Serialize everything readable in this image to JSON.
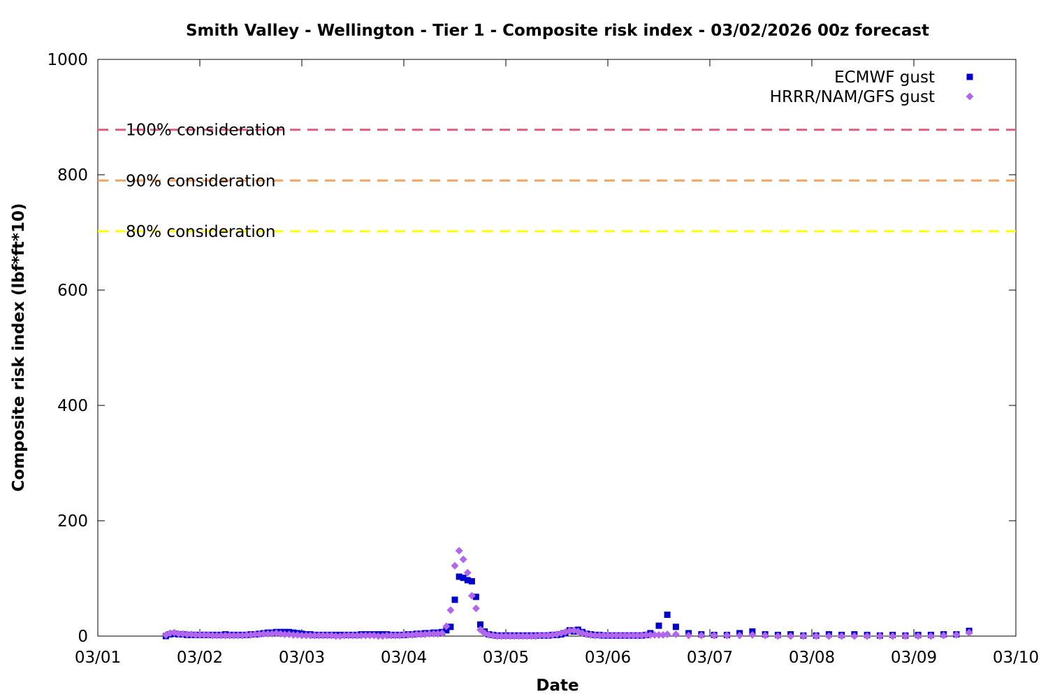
{
  "chart_data": {
    "type": "scatter",
    "title": "Smith Valley - Wellington - Tier 1 - Composite risk index - 03/02/2026 00z forecast",
    "xlabel": "Date",
    "ylabel": "Composite risk index (lbf*ft*10)",
    "xlim": [
      "03/01",
      "03/10"
    ],
    "ylim": [
      0,
      1000
    ],
    "x_ticks": [
      "03/01",
      "03/02",
      "03/03",
      "03/04",
      "03/05",
      "03/06",
      "03/07",
      "03/08",
      "03/09",
      "03/10"
    ],
    "y_ticks": [
      0,
      200,
      400,
      600,
      800,
      1000
    ],
    "x_unit_note": "x values are in days on the date axis (0 = 03/01, 1 = 03/02, ...)",
    "grid": false,
    "legend_position": "top-right",
    "reference_lines": [
      {
        "label": "100% consideration",
        "value": 878,
        "color": "#e0607e"
      },
      {
        "label": "90% consideration",
        "value": 790,
        "color": "#f4a460"
      },
      {
        "label": "80% consideration",
        "value": 702,
        "color": "#ffff00"
      }
    ],
    "series": [
      {
        "name": "ECMWF gust",
        "marker": "square",
        "color": "#0000cc",
        "points": [
          [
            0.667,
            0
          ],
          [
            0.708,
            3
          ],
          [
            0.75,
            4
          ],
          [
            0.792,
            3
          ],
          [
            0.833,
            3
          ],
          [
            0.875,
            2
          ],
          [
            0.917,
            2
          ],
          [
            0.958,
            2
          ],
          [
            1.0,
            2
          ],
          [
            1.042,
            2
          ],
          [
            1.083,
            2
          ],
          [
            1.125,
            2
          ],
          [
            1.167,
            2
          ],
          [
            1.208,
            2
          ],
          [
            1.25,
            3
          ],
          [
            1.292,
            2
          ],
          [
            1.333,
            2
          ],
          [
            1.375,
            2
          ],
          [
            1.417,
            2
          ],
          [
            1.458,
            2
          ],
          [
            1.5,
            3
          ],
          [
            1.542,
            3
          ],
          [
            1.583,
            4
          ],
          [
            1.625,
            5
          ],
          [
            1.667,
            6
          ],
          [
            1.708,
            6
          ],
          [
            1.75,
            7
          ],
          [
            1.792,
            7
          ],
          [
            1.833,
            7
          ],
          [
            1.875,
            7
          ],
          [
            1.917,
            6
          ],
          [
            1.958,
            5
          ],
          [
            2.0,
            4
          ],
          [
            2.042,
            3
          ],
          [
            2.083,
            3
          ],
          [
            2.125,
            2
          ],
          [
            2.167,
            2
          ],
          [
            2.208,
            2
          ],
          [
            2.25,
            2
          ],
          [
            2.292,
            2
          ],
          [
            2.333,
            2
          ],
          [
            2.375,
            2
          ],
          [
            2.417,
            2
          ],
          [
            2.458,
            2
          ],
          [
            2.5,
            2
          ],
          [
            2.542,
            2
          ],
          [
            2.583,
            3
          ],
          [
            2.625,
            3
          ],
          [
            2.667,
            3
          ],
          [
            2.708,
            3
          ],
          [
            2.75,
            3
          ],
          [
            2.792,
            3
          ],
          [
            2.833,
            3
          ],
          [
            2.875,
            2
          ],
          [
            2.917,
            2
          ],
          [
            2.958,
            2
          ],
          [
            3.0,
            2
          ],
          [
            3.042,
            3
          ],
          [
            3.083,
            3
          ],
          [
            3.125,
            4
          ],
          [
            3.167,
            4
          ],
          [
            3.208,
            5
          ],
          [
            3.25,
            5
          ],
          [
            3.292,
            6
          ],
          [
            3.333,
            6
          ],
          [
            3.375,
            7
          ],
          [
            3.417,
            10
          ],
          [
            3.458,
            16
          ],
          [
            3.5,
            63
          ],
          [
            3.542,
            103
          ],
          [
            3.583,
            101
          ],
          [
            3.625,
            97
          ],
          [
            3.667,
            95
          ],
          [
            3.708,
            68
          ],
          [
            3.75,
            20
          ],
          [
            3.792,
            8
          ],
          [
            3.833,
            3
          ],
          [
            3.875,
            2
          ],
          [
            3.917,
            1
          ],
          [
            3.958,
            1
          ],
          [
            4.0,
            1
          ],
          [
            4.042,
            1
          ],
          [
            4.083,
            1
          ],
          [
            4.125,
            1
          ],
          [
            4.167,
            1
          ],
          [
            4.208,
            1
          ],
          [
            4.25,
            1
          ],
          [
            4.292,
            1
          ],
          [
            4.333,
            1
          ],
          [
            4.375,
            1
          ],
          [
            4.417,
            1
          ],
          [
            4.458,
            2
          ],
          [
            4.5,
            2
          ],
          [
            4.542,
            3
          ],
          [
            4.583,
            5
          ],
          [
            4.625,
            10
          ],
          [
            4.667,
            8
          ],
          [
            4.708,
            11
          ],
          [
            4.75,
            7
          ],
          [
            4.792,
            4
          ],
          [
            4.833,
            3
          ],
          [
            4.875,
            2
          ],
          [
            4.917,
            2
          ],
          [
            4.958,
            1
          ],
          [
            5.0,
            1
          ],
          [
            5.042,
            1
          ],
          [
            5.083,
            1
          ],
          [
            5.125,
            1
          ],
          [
            5.167,
            1
          ],
          [
            5.208,
            1
          ],
          [
            5.25,
            1
          ],
          [
            5.292,
            1
          ],
          [
            5.333,
            1
          ],
          [
            5.375,
            2
          ],
          [
            5.417,
            5
          ],
          [
            5.5,
            18
          ],
          [
            5.583,
            37
          ],
          [
            5.667,
            16
          ],
          [
            5.792,
            5
          ],
          [
            5.917,
            3
          ],
          [
            6.042,
            2
          ],
          [
            6.167,
            2
          ],
          [
            6.292,
            5
          ],
          [
            6.417,
            8
          ],
          [
            6.542,
            3
          ],
          [
            6.667,
            2
          ],
          [
            6.792,
            3
          ],
          [
            6.917,
            1
          ],
          [
            7.042,
            1
          ],
          [
            7.167,
            3
          ],
          [
            7.292,
            2
          ],
          [
            7.417,
            3
          ],
          [
            7.542,
            2
          ],
          [
            7.667,
            1
          ],
          [
            7.792,
            2
          ],
          [
            7.917,
            1
          ],
          [
            8.042,
            2
          ],
          [
            8.167,
            2
          ],
          [
            8.292,
            3
          ],
          [
            8.417,
            3
          ],
          [
            8.542,
            9
          ]
        ]
      },
      {
        "name": "HRRR/NAM/GFS gust",
        "marker": "diamond",
        "color": "#b266ee",
        "points": [
          [
            0.667,
            2
          ],
          [
            0.708,
            5
          ],
          [
            0.75,
            6
          ],
          [
            0.792,
            4
          ],
          [
            0.833,
            4
          ],
          [
            0.875,
            3
          ],
          [
            0.917,
            3
          ],
          [
            0.958,
            2
          ],
          [
            1.0,
            2
          ],
          [
            1.042,
            2
          ],
          [
            1.083,
            2
          ],
          [
            1.125,
            1
          ],
          [
            1.167,
            1
          ],
          [
            1.208,
            1
          ],
          [
            1.25,
            1
          ],
          [
            1.292,
            1
          ],
          [
            1.333,
            1
          ],
          [
            1.375,
            1
          ],
          [
            1.417,
            1
          ],
          [
            1.458,
            2
          ],
          [
            1.5,
            2
          ],
          [
            1.542,
            3
          ],
          [
            1.583,
            3
          ],
          [
            1.625,
            4
          ],
          [
            1.667,
            4
          ],
          [
            1.708,
            4
          ],
          [
            1.75,
            5
          ],
          [
            1.792,
            4
          ],
          [
            1.833,
            3
          ],
          [
            1.875,
            3
          ],
          [
            1.917,
            2
          ],
          [
            1.958,
            2
          ],
          [
            2.0,
            1
          ],
          [
            2.042,
            1
          ],
          [
            2.083,
            1
          ],
          [
            2.125,
            1
          ],
          [
            2.167,
            1
          ],
          [
            2.208,
            1
          ],
          [
            2.25,
            1
          ],
          [
            2.292,
            1
          ],
          [
            2.333,
            0
          ],
          [
            2.375,
            0
          ],
          [
            2.417,
            1
          ],
          [
            2.458,
            1
          ],
          [
            2.5,
            1
          ],
          [
            2.542,
            1
          ],
          [
            2.583,
            1
          ],
          [
            2.625,
            1
          ],
          [
            2.667,
            1
          ],
          [
            2.708,
            1
          ],
          [
            2.75,
            0
          ],
          [
            2.792,
            0
          ],
          [
            2.833,
            1
          ],
          [
            2.875,
            1
          ],
          [
            2.917,
            1
          ],
          [
            2.958,
            1
          ],
          [
            3.0,
            2
          ],
          [
            3.042,
            2
          ],
          [
            3.083,
            2
          ],
          [
            3.125,
            3
          ],
          [
            3.167,
            3
          ],
          [
            3.208,
            3
          ],
          [
            3.25,
            4
          ],
          [
            3.292,
            4
          ],
          [
            3.333,
            4
          ],
          [
            3.375,
            5
          ],
          [
            3.417,
            17
          ],
          [
            3.458,
            45
          ],
          [
            3.5,
            122
          ],
          [
            3.542,
            148
          ],
          [
            3.583,
            133
          ],
          [
            3.625,
            110
          ],
          [
            3.667,
            70
          ],
          [
            3.708,
            48
          ],
          [
            3.75,
            11
          ],
          [
            3.792,
            5
          ],
          [
            3.833,
            2
          ],
          [
            3.875,
            1
          ],
          [
            3.917,
            0
          ],
          [
            3.958,
            0
          ],
          [
            4.0,
            0
          ],
          [
            4.042,
            0
          ],
          [
            4.083,
            0
          ],
          [
            4.125,
            0
          ],
          [
            4.167,
            0
          ],
          [
            4.208,
            0
          ],
          [
            4.25,
            0
          ],
          [
            4.292,
            0
          ],
          [
            4.333,
            1
          ],
          [
            4.375,
            1
          ],
          [
            4.417,
            1
          ],
          [
            4.458,
            2
          ],
          [
            4.5,
            3
          ],
          [
            4.542,
            5
          ],
          [
            4.583,
            7
          ],
          [
            4.625,
            9
          ],
          [
            4.667,
            10
          ],
          [
            4.708,
            8
          ],
          [
            4.75,
            5
          ],
          [
            4.792,
            3
          ],
          [
            4.833,
            2
          ],
          [
            4.875,
            1
          ],
          [
            4.917,
            1
          ],
          [
            4.958,
            1
          ],
          [
            5.0,
            1
          ],
          [
            5.042,
            1
          ],
          [
            5.083,
            1
          ],
          [
            5.125,
            1
          ],
          [
            5.167,
            1
          ],
          [
            5.208,
            1
          ],
          [
            5.25,
            1
          ],
          [
            5.292,
            1
          ],
          [
            5.333,
            1
          ],
          [
            5.375,
            2
          ],
          [
            5.417,
            2
          ],
          [
            5.458,
            2
          ],
          [
            5.5,
            2
          ],
          [
            5.542,
            2
          ],
          [
            5.583,
            3
          ],
          [
            5.667,
            3
          ],
          [
            5.792,
            1
          ],
          [
            5.917,
            1
          ],
          [
            6.042,
            1
          ],
          [
            6.167,
            1
          ],
          [
            6.292,
            1
          ],
          [
            6.417,
            2
          ],
          [
            6.542,
            1
          ],
          [
            6.667,
            0
          ],
          [
            6.792,
            0
          ],
          [
            6.917,
            0
          ],
          [
            7.042,
            0
          ],
          [
            7.167,
            0
          ],
          [
            7.292,
            0
          ],
          [
            7.417,
            0
          ],
          [
            7.542,
            0
          ],
          [
            7.667,
            0
          ],
          [
            7.792,
            0
          ],
          [
            7.917,
            0
          ],
          [
            8.042,
            0
          ],
          [
            8.167,
            0
          ],
          [
            8.292,
            1
          ],
          [
            8.417,
            2
          ],
          [
            8.542,
            6
          ]
        ]
      }
    ]
  }
}
